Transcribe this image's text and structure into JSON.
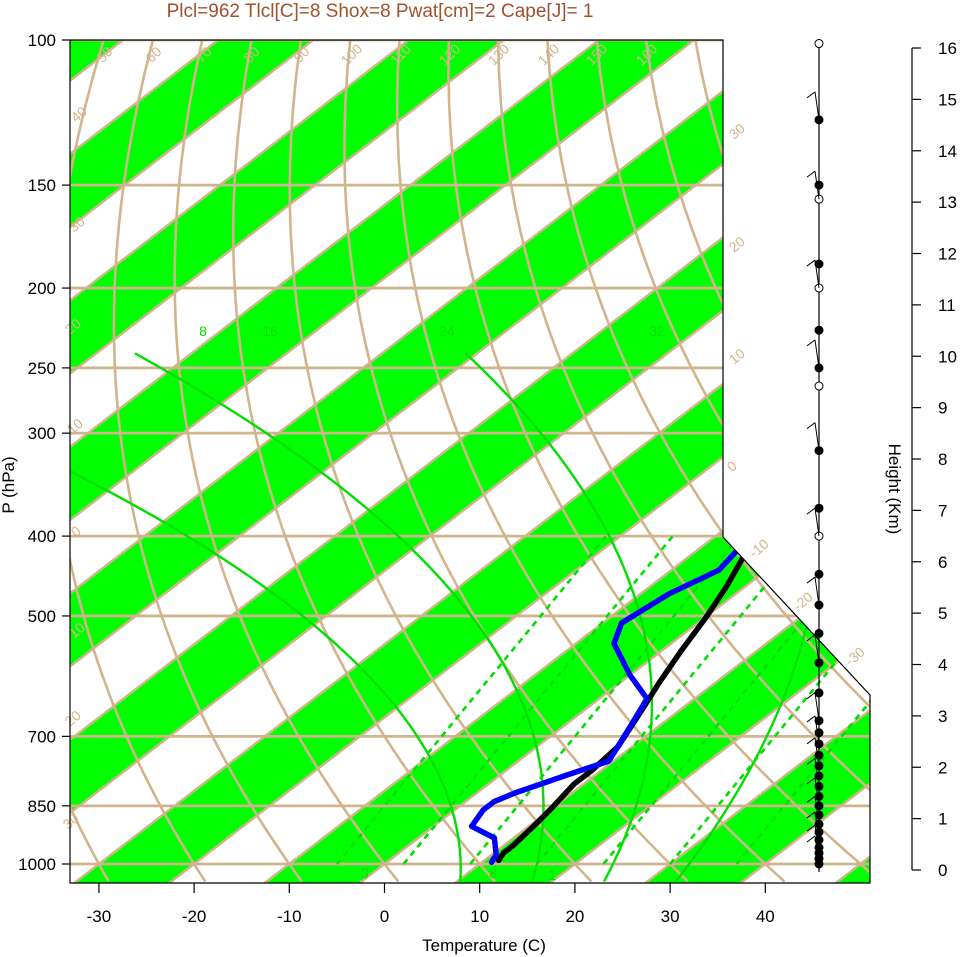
{
  "chart_data": {
    "type": "line",
    "title": "Plcl=962 Tlcl[C]=8 Shox=8 Pwat[cm]=2 Cape[J]= 1",
    "xlabel": "Temperature (C)",
    "ylabel": "P (hPa)",
    "y2label": "Height (Km)",
    "xlim": [
      -34,
      52
    ],
    "ylim": [
      1050,
      100
    ],
    "yscale": "log",
    "x_ticks": [
      "-30",
      "-20",
      "-10",
      "0",
      "10",
      "20",
      "30",
      "40"
    ],
    "pressure_levels": [
      100,
      150,
      200,
      250,
      300,
      400,
      500,
      700,
      850,
      1000
    ],
    "pressure_tick_labels": [
      "100",
      "150",
      "200",
      "250",
      "300",
      "400",
      "500",
      "700",
      "850",
      "1000"
    ],
    "height_ticks": [
      "0",
      "1",
      "2",
      "3",
      "4",
      "5",
      "6",
      "7",
      "8",
      "9",
      "10",
      "11",
      "12",
      "13",
      "14",
      "15",
      "16"
    ],
    "isotherm_labels": [
      "50",
      "60",
      "70",
      "80",
      "90",
      "100",
      "110",
      "120",
      "130",
      "140",
      "150",
      "160",
      "40",
      "30",
      "30",
      "20",
      "20",
      "10",
      "10",
      "0",
      "0",
      "10",
      "-10",
      "20",
      "-20",
      "30",
      "-30"
    ],
    "mixing_ratio_labels": [
      "8",
      "16",
      "24",
      "32",
      "3",
      "8",
      "1"
    ],
    "series": [
      {
        "name": "Temperature",
        "color": "#000000",
        "points": [
          [
            11.5,
            990
          ],
          [
            11,
            970
          ],
          [
            11,
            950
          ],
          [
            10.5,
            900
          ],
          [
            10,
            860
          ],
          [
            9,
            800
          ],
          [
            9,
            770
          ],
          [
            8.5,
            720
          ],
          [
            6,
            650
          ],
          [
            4,
            600
          ],
          [
            2,
            550
          ],
          [
            0,
            500
          ],
          [
            -2,
            460
          ],
          [
            -4.5,
            420
          ],
          [
            -8,
            380
          ],
          [
            -11,
            350
          ],
          [
            -13,
            330
          ],
          [
            -13,
            300
          ],
          [
            -12,
            280
          ],
          [
            -8,
            255
          ],
          [
            -2,
            230
          ],
          [
            6,
            200
          ],
          [
            10,
            180
          ],
          [
            13,
            165
          ],
          [
            15.5,
            150
          ],
          [
            16,
            140
          ],
          [
            17,
            125
          ],
          [
            18,
            115
          ]
        ]
      },
      {
        "name": "Dewpoint",
        "color": "#0000ff",
        "points": [
          [
            11,
            995
          ],
          [
            10.5,
            975
          ],
          [
            8,
            930
          ],
          [
            4,
            900
          ],
          [
            3,
            860
          ],
          [
            3,
            840
          ],
          [
            4,
            820
          ],
          [
            7,
            780
          ],
          [
            9.5,
            750
          ],
          [
            7,
            680
          ],
          [
            5,
            630
          ],
          [
            0,
            590
          ],
          [
            -6,
            540
          ],
          [
            -8,
            510
          ],
          [
            -7,
            470
          ],
          [
            -5,
            440
          ],
          [
            -6,
            410
          ],
          [
            -8,
            390
          ],
          [
            -10,
            340
          ],
          [
            -12,
            310
          ],
          [
            -13,
            285
          ],
          [
            -17,
            265
          ],
          [
            -20,
            245
          ],
          [
            -20,
            200
          ],
          [
            -19,
            170
          ],
          [
            -18,
            155
          ],
          [
            -16,
            140
          ],
          [
            -13,
            125
          ],
          [
            -8,
            108
          ]
        ]
      }
    ],
    "wind_profile": [
      {
        "pressure": 1000,
        "filled": true
      },
      {
        "pressure": 985,
        "filled": true
      },
      {
        "pressure": 970,
        "filled": true
      },
      {
        "pressure": 955,
        "filled": true
      },
      {
        "pressure": 935,
        "filled": true
      },
      {
        "pressure": 915,
        "filled": true
      },
      {
        "pressure": 895,
        "filled": true
      },
      {
        "pressure": 872,
        "filled": true
      },
      {
        "pressure": 850,
        "filled": true
      },
      {
        "pressure": 828,
        "filled": true
      },
      {
        "pressure": 805,
        "filled": true
      },
      {
        "pressure": 782,
        "filled": true
      },
      {
        "pressure": 760,
        "filled": true
      },
      {
        "pressure": 738,
        "filled": true
      },
      {
        "pressure": 715,
        "filled": true
      },
      {
        "pressure": 693,
        "filled": true
      },
      {
        "pressure": 670,
        "filled": true
      },
      {
        "pressure": 620,
        "filled": true
      },
      {
        "pressure": 570,
        "filled": true
      },
      {
        "pressure": 525,
        "filled": true
      },
      {
        "pressure": 485,
        "filled": true
      },
      {
        "pressure": 445,
        "filled": true
      },
      {
        "pressure": 400,
        "filled": false
      },
      {
        "pressure": 370,
        "filled": true
      },
      {
        "pressure": 315,
        "filled": true
      },
      {
        "pressure": 263,
        "filled": false
      },
      {
        "pressure": 250,
        "filled": true
      },
      {
        "pressure": 225,
        "filled": true
      },
      {
        "pressure": 200,
        "filled": false
      },
      {
        "pressure": 187,
        "filled": true
      },
      {
        "pressure": 156,
        "filled": false
      },
      {
        "pressure": 150,
        "filled": true
      },
      {
        "pressure": 125,
        "filled": true
      },
      {
        "pressure": 101,
        "filled": false
      }
    ],
    "colors": {
      "band": "#00ff00",
      "isotherm": "#d2b48c",
      "temperature": "#000000",
      "dewpoint": "#0000ff",
      "mixing_ratio": "#00e000",
      "title": "#a0522d"
    }
  }
}
